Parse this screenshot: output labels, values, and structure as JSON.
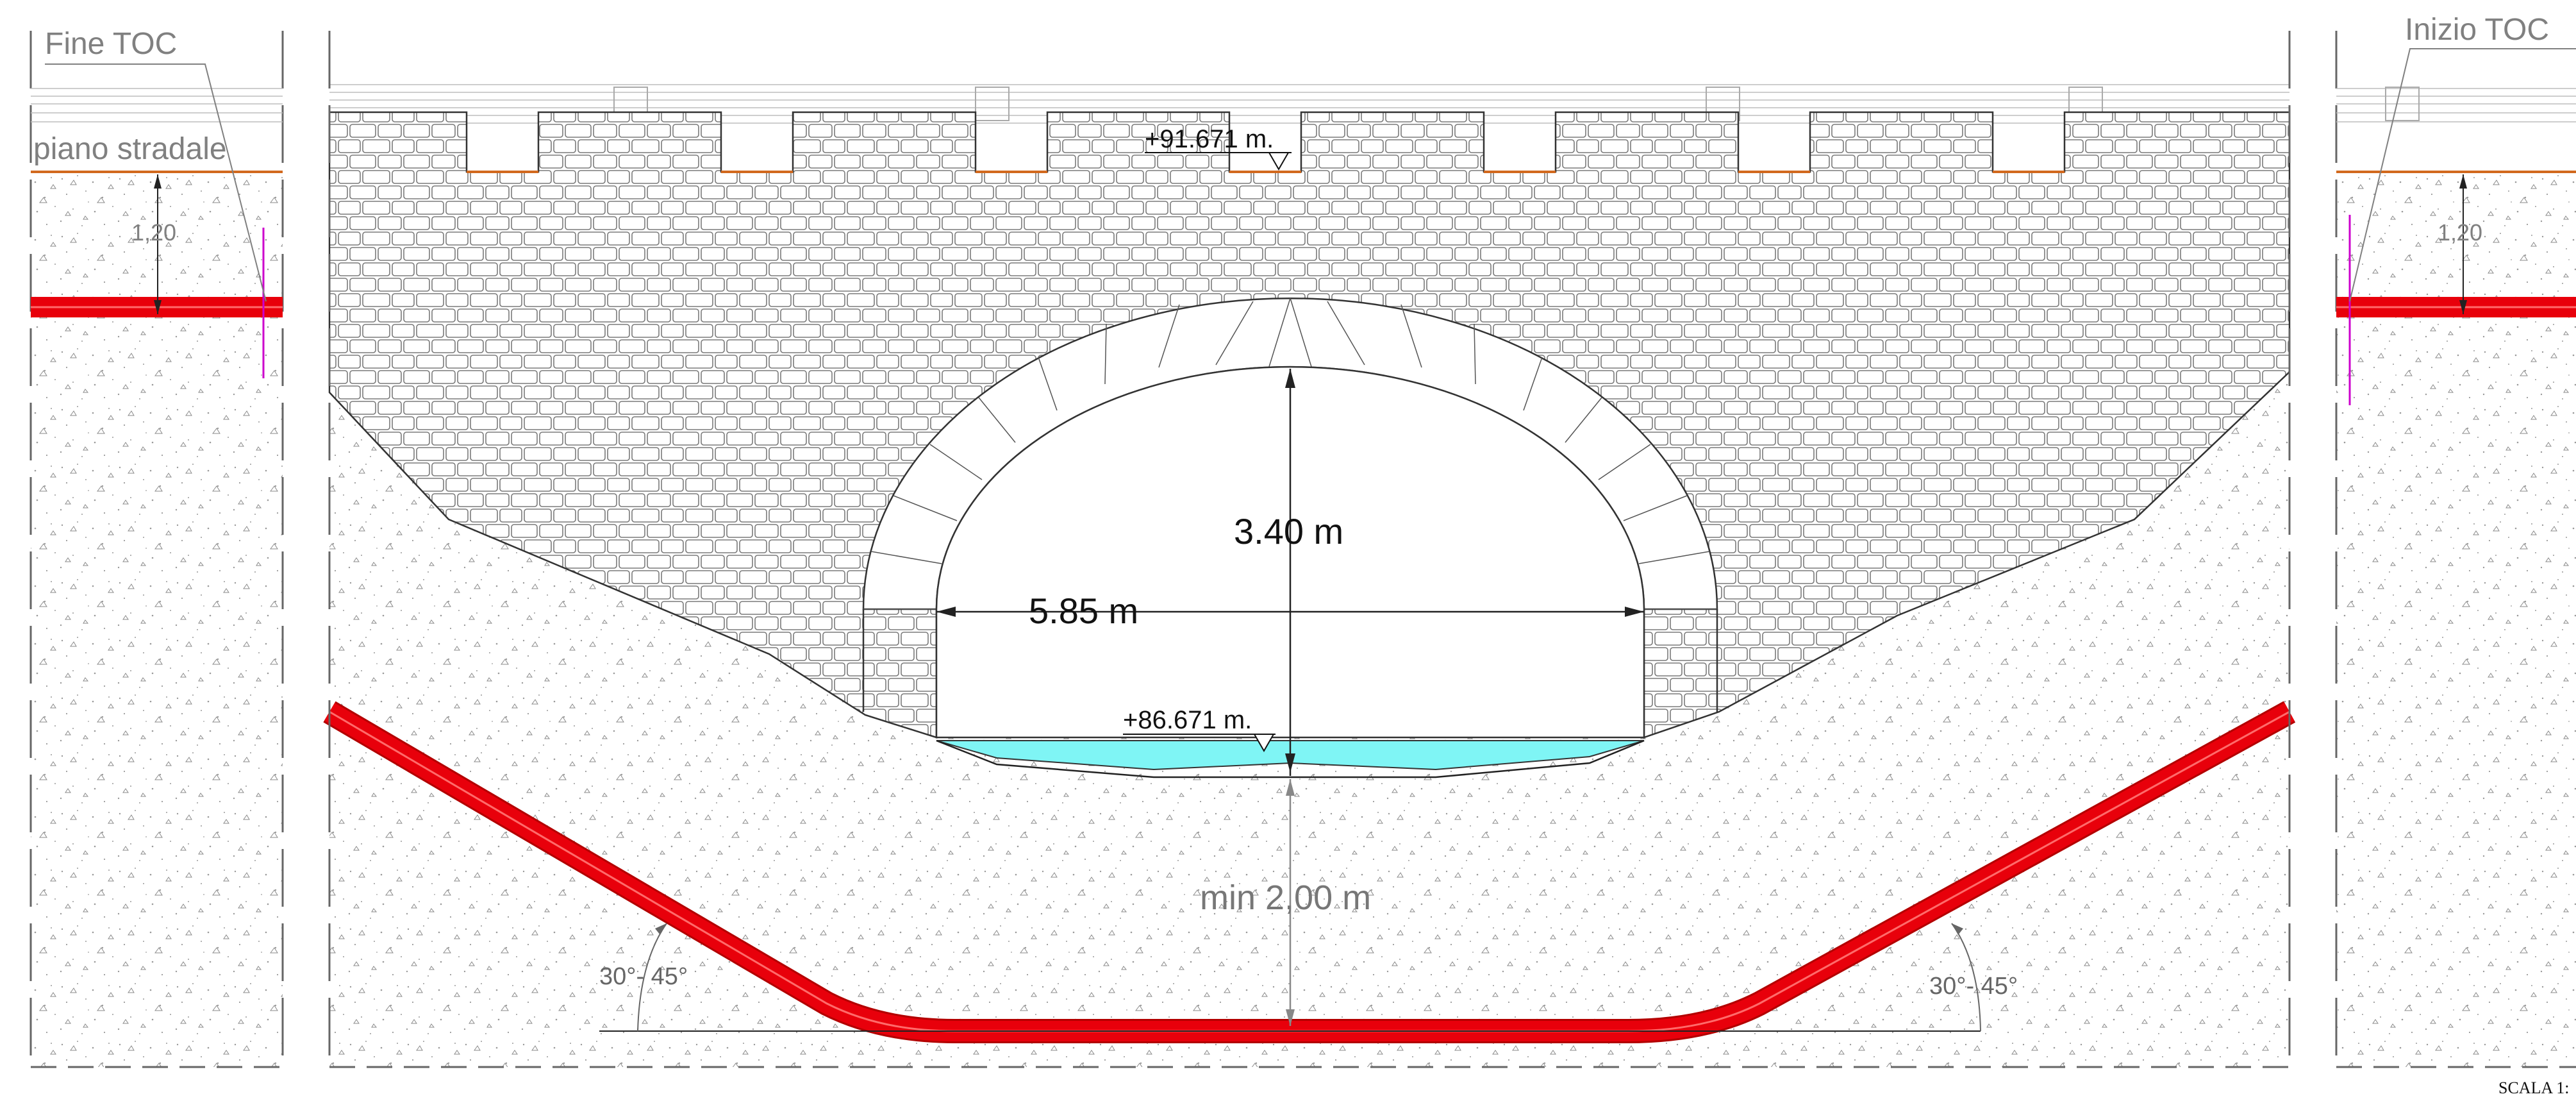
{
  "labels": {
    "fine_toc": "Fine TOC",
    "inizio_toc": "Inizio TOC",
    "piano_stradale": "piano stradale",
    "depth_left": "1,20",
    "depth_right": "1,20",
    "elev_top": "+91.671 m.",
    "elev_bottom": "+86.671 m.",
    "arch_height": "3.40 m",
    "arch_width": "5.85 m",
    "min_depth": "min 2,00 m",
    "angle_left": "30°- 45°",
    "angle_right": "30°- 45°",
    "scale": "SCALA 1:"
  },
  "colors": {
    "pipe": "#e8000b",
    "water": "#7ff5f5",
    "road_line": "#d2691e",
    "marker": "#cc00cc",
    "leader": "#808080",
    "dim": "#222222"
  }
}
